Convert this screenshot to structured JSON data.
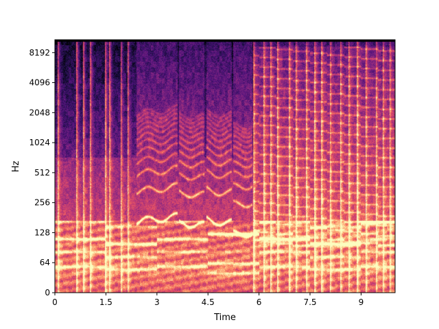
{
  "chart_data": {
    "type": "heatmap",
    "subtype": "log-frequency spectrogram",
    "colormap": "magma",
    "title": "",
    "xlabel": "Time",
    "ylabel": "Hz",
    "xlim": [
      0,
      10
    ],
    "ylim": [
      0,
      11025
    ],
    "y_scale": "symlog",
    "grid": false,
    "legend": "none",
    "x_ticks": [
      {
        "value": 0,
        "label": "0"
      },
      {
        "value": 1.5,
        "label": "1.5"
      },
      {
        "value": 3,
        "label": "3"
      },
      {
        "value": 4.5,
        "label": "4.5"
      },
      {
        "value": 6,
        "label": "6"
      },
      {
        "value": 7.5,
        "label": "7.5"
      },
      {
        "value": 9,
        "label": "9"
      }
    ],
    "y_ticks": [
      {
        "value": 0,
        "label": "0"
      },
      {
        "value": 64,
        "label": "64"
      },
      {
        "value": 128,
        "label": "128"
      },
      {
        "value": 256,
        "label": "256"
      },
      {
        "value": 512,
        "label": "512"
      },
      {
        "value": 1024,
        "label": "1024"
      },
      {
        "value": 2048,
        "label": "2048"
      },
      {
        "value": 4096,
        "label": "4096"
      },
      {
        "value": 8192,
        "label": "8192"
      }
    ],
    "onsets": [
      0.1,
      0.65,
      0.85,
      1.05,
      1.5,
      1.62,
      1.95,
      2.15,
      5.85,
      6.15,
      6.35,
      6.55,
      6.9,
      7.1,
      7.4,
      7.65,
      7.85,
      8.1,
      8.4,
      8.65,
      8.9,
      9.15,
      9.45,
      9.65,
      9.85
    ],
    "sung_segments": [
      {
        "start": 2.4,
        "end": 3.6,
        "f0": 175
      },
      {
        "start": 3.65,
        "end": 4.4,
        "f0": 150
      },
      {
        "start": 4.45,
        "end": 5.2,
        "f0": 170
      },
      {
        "start": 5.25,
        "end": 5.8,
        "f0": 130
      }
    ],
    "chord_segments": [
      {
        "start": 0.0,
        "end": 1.5,
        "roots": [
          55,
          82,
          110
        ]
      },
      {
        "start": 1.5,
        "end": 3.0,
        "roots": [
          49,
          73,
          98
        ]
      },
      {
        "start": 3.0,
        "end": 4.5,
        "roots": [
          55,
          82,
          110
        ]
      },
      {
        "start": 4.5,
        "end": 6.0,
        "roots": [
          41,
          62,
          123
        ]
      },
      {
        "start": 6.0,
        "end": 7.5,
        "roots": [
          55,
          82,
          110
        ]
      },
      {
        "start": 7.5,
        "end": 9.0,
        "roots": [
          49,
          73,
          98
        ]
      },
      {
        "start": 9.0,
        "end": 10.0,
        "roots": [
          55,
          82,
          165
        ]
      }
    ]
  },
  "colors": {
    "background": "#000004",
    "colormap_stops": [
      "#000004",
      "#1c1044",
      "#4f127b",
      "#812581",
      "#b5367a",
      "#e55064",
      "#fb8761",
      "#fec287",
      "#fcfdbf"
    ]
  }
}
